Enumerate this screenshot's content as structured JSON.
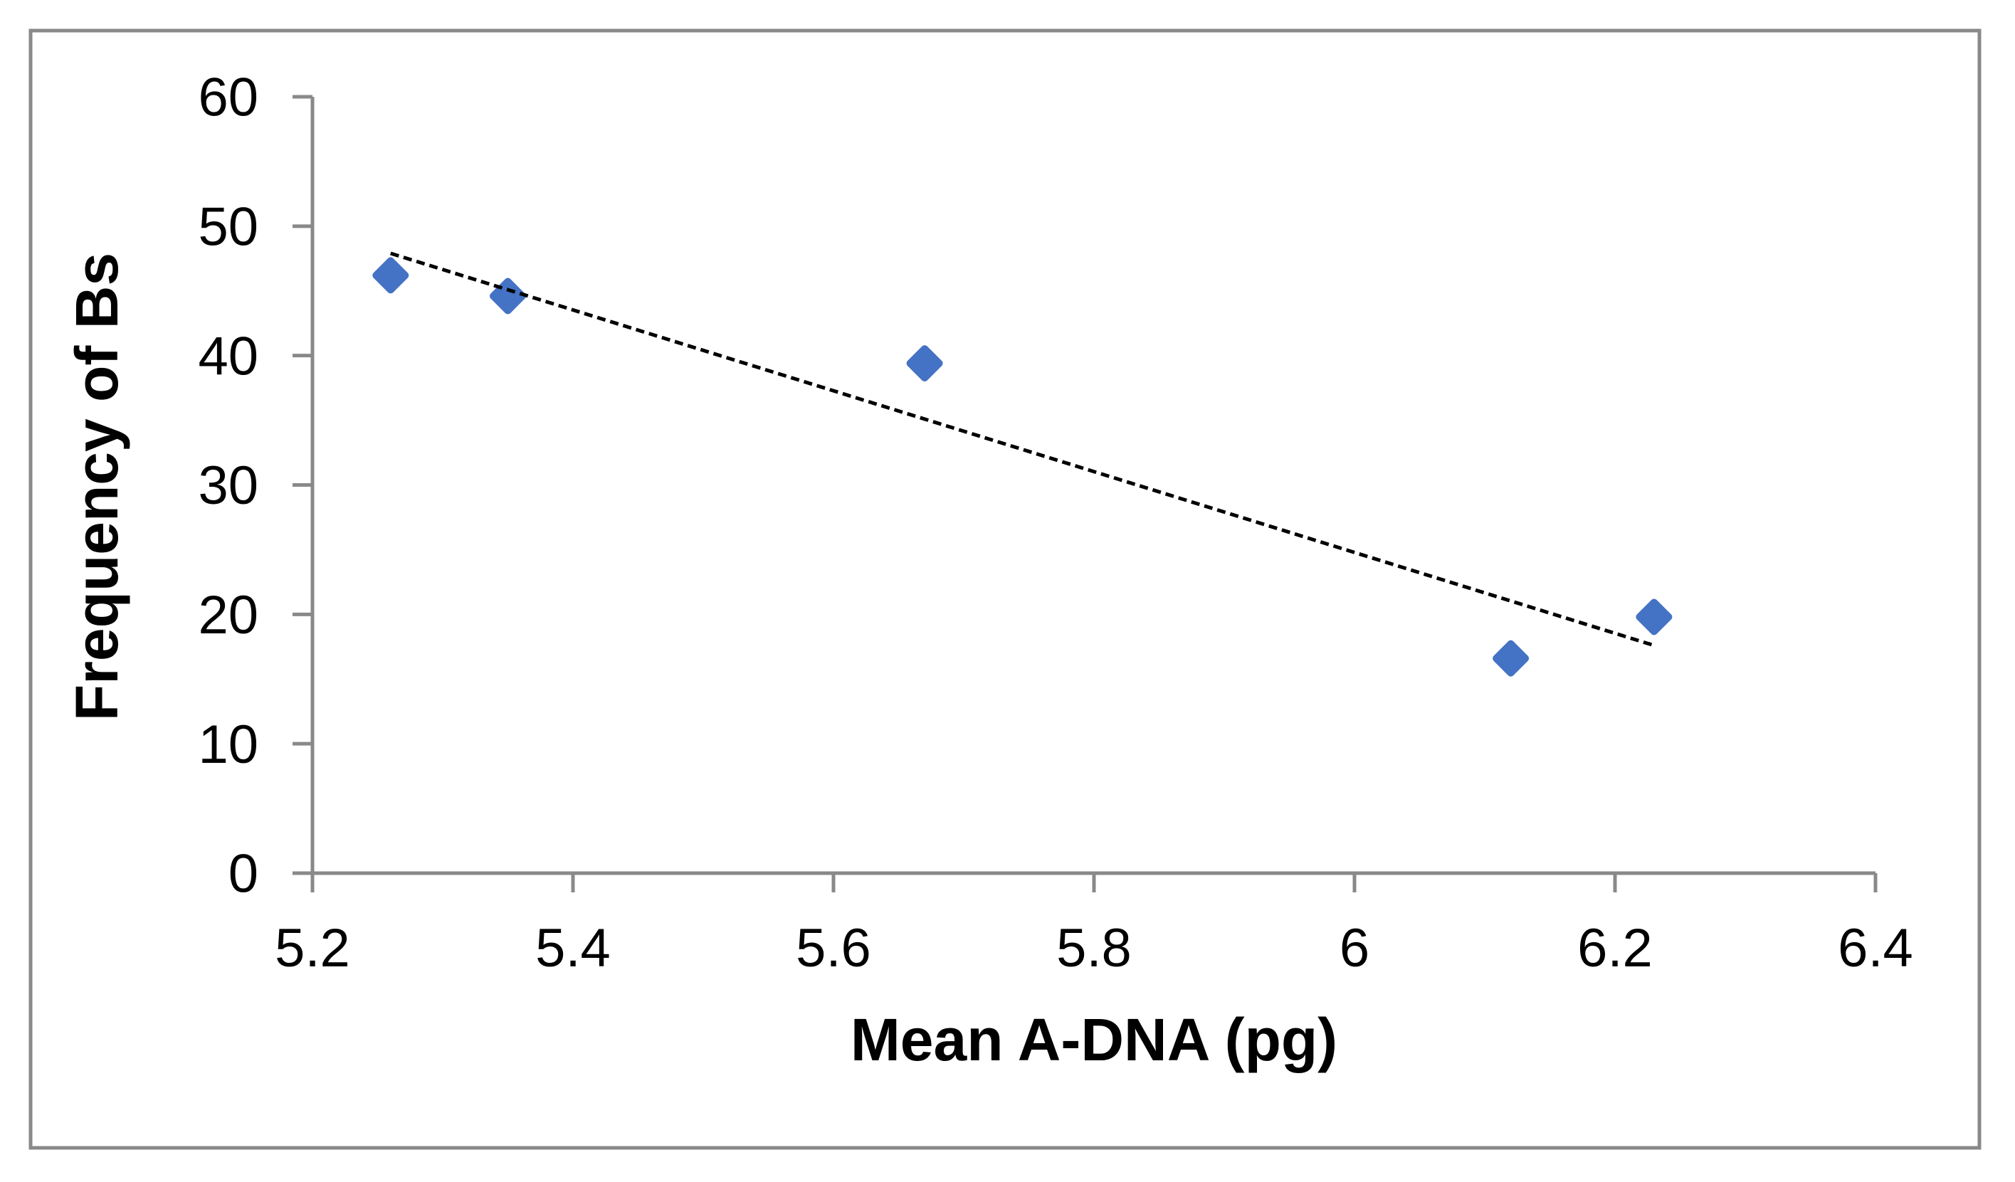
{
  "figure": {
    "background_color": "#ffffff",
    "border_color": "#898989",
    "axis_color": "#898989"
  },
  "chart_data": {
    "type": "scatter",
    "title": "",
    "xlabel": "Mean A-DNA (pg)",
    "ylabel": "Frequency of Bs",
    "xlim": [
      5.2,
      6.4
    ],
    "ylim": [
      0,
      60
    ],
    "x_tick_values": [
      5.2,
      5.4,
      5.6,
      5.8,
      6.0,
      6.2,
      6.4
    ],
    "x_tick_labels": [
      "5.2",
      "5.4",
      "5.6",
      "5.8",
      "6",
      "6.2",
      "6.4"
    ],
    "y_tick_values": [
      0,
      10,
      20,
      30,
      40,
      50,
      60
    ],
    "y_tick_labels": [
      "0",
      "10",
      "20",
      "30",
      "40",
      "50",
      "60"
    ],
    "grid": false,
    "legend": false,
    "series": [
      {
        "marker": "diamond",
        "marker_color": "#4472C4",
        "points": [
          {
            "x": 5.26,
            "y": 46.2
          },
          {
            "x": 5.35,
            "y": 44.6
          },
          {
            "x": 5.67,
            "y": 39.4
          },
          {
            "x": 6.12,
            "y": 16.6
          },
          {
            "x": 6.23,
            "y": 19.8
          }
        ]
      }
    ],
    "trendline": {
      "type": "linear",
      "line_style": "dashed",
      "color": "#000000",
      "x_start": 5.26,
      "y_start": 47.9,
      "x_end": 6.23,
      "y_end": 17.6
    }
  }
}
